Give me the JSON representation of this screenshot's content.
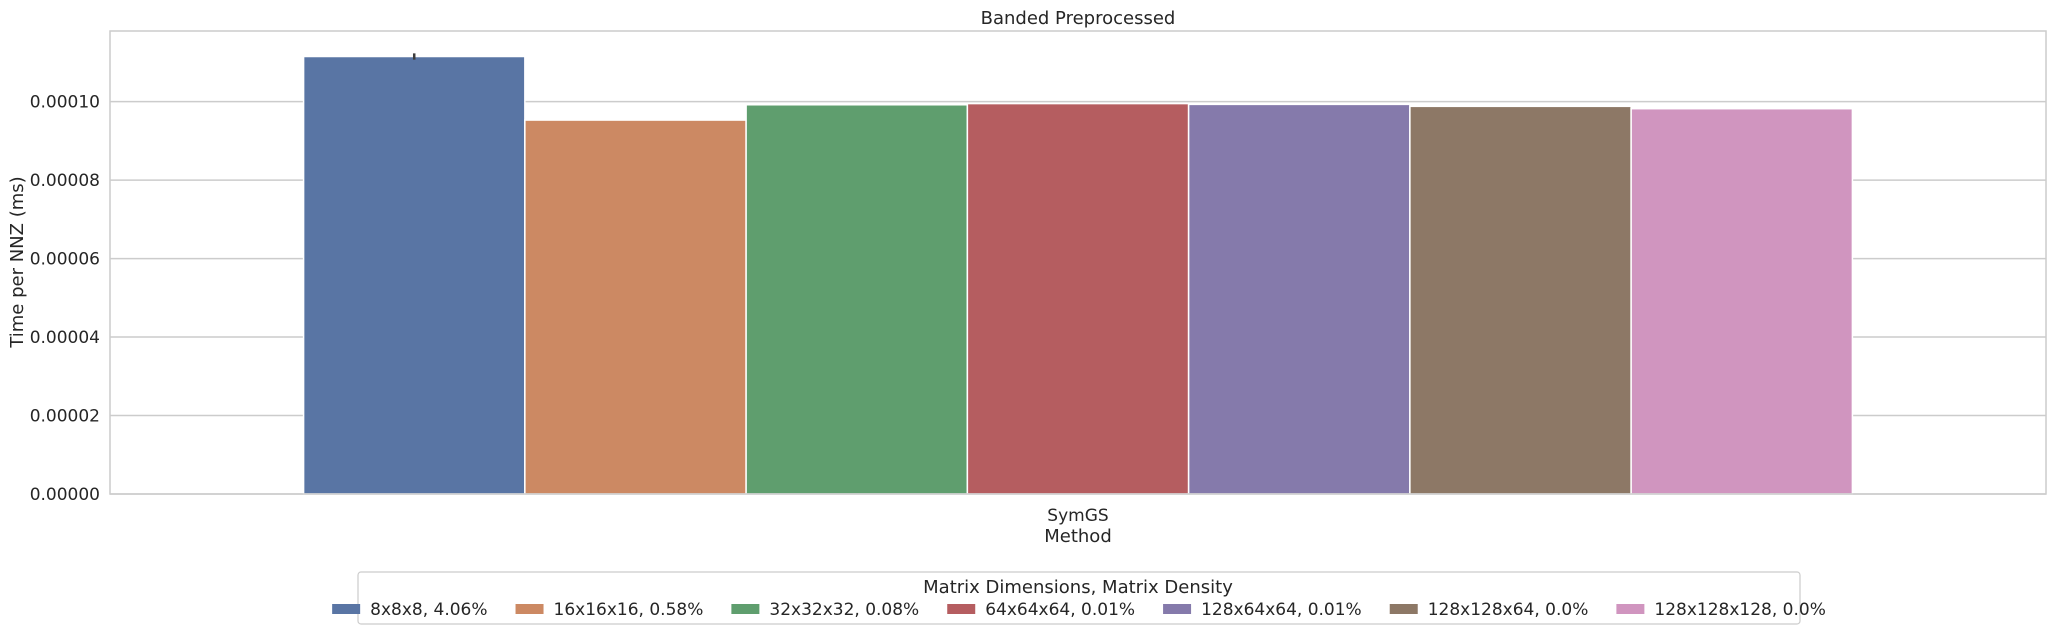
{
  "chart_data": {
    "type": "bar",
    "title": "Banded Preprocessed",
    "xlabel": "Method",
    "ylabel": "Time per NNZ (ms)",
    "categories": [
      "SymGS"
    ],
    "ylim": [
      0,
      0.000118
    ],
    "yticks": [
      "0.00000",
      "0.00002",
      "0.00004",
      "0.00006",
      "0.00008",
      "0.00010"
    ],
    "ytick_values": [
      0,
      2e-05,
      4e-05,
      6e-05,
      8e-05,
      0.0001
    ],
    "grid": "horizontal",
    "legend_title": "Matrix Dimensions, Matrix Density",
    "legend_position": "bottom-center",
    "series": [
      {
        "name": "8x8x8, 4.06%",
        "values": [
          0.0001115
        ],
        "error": [
          8e-07
        ],
        "color": "#5975a4"
      },
      {
        "name": "16x16x16, 0.58%",
        "values": [
          9.53e-05
        ],
        "color": "#cc8963"
      },
      {
        "name": "32x32x32, 0.08%",
        "values": [
          9.92e-05
        ],
        "color": "#5f9e6e"
      },
      {
        "name": "64x64x64, 0.01%",
        "values": [
          9.95e-05
        ],
        "color": "#b55d60"
      },
      {
        "name": "128x64x64, 0.01%",
        "values": [
          9.93e-05
        ],
        "color": "#857aab"
      },
      {
        "name": "128x128x64, 0.0%",
        "values": [
          9.88e-05
        ],
        "color": "#8d7866"
      },
      {
        "name": "128x128x128, 0.0%",
        "values": [
          9.82e-05
        ],
        "color": "#d095bf"
      }
    ]
  }
}
